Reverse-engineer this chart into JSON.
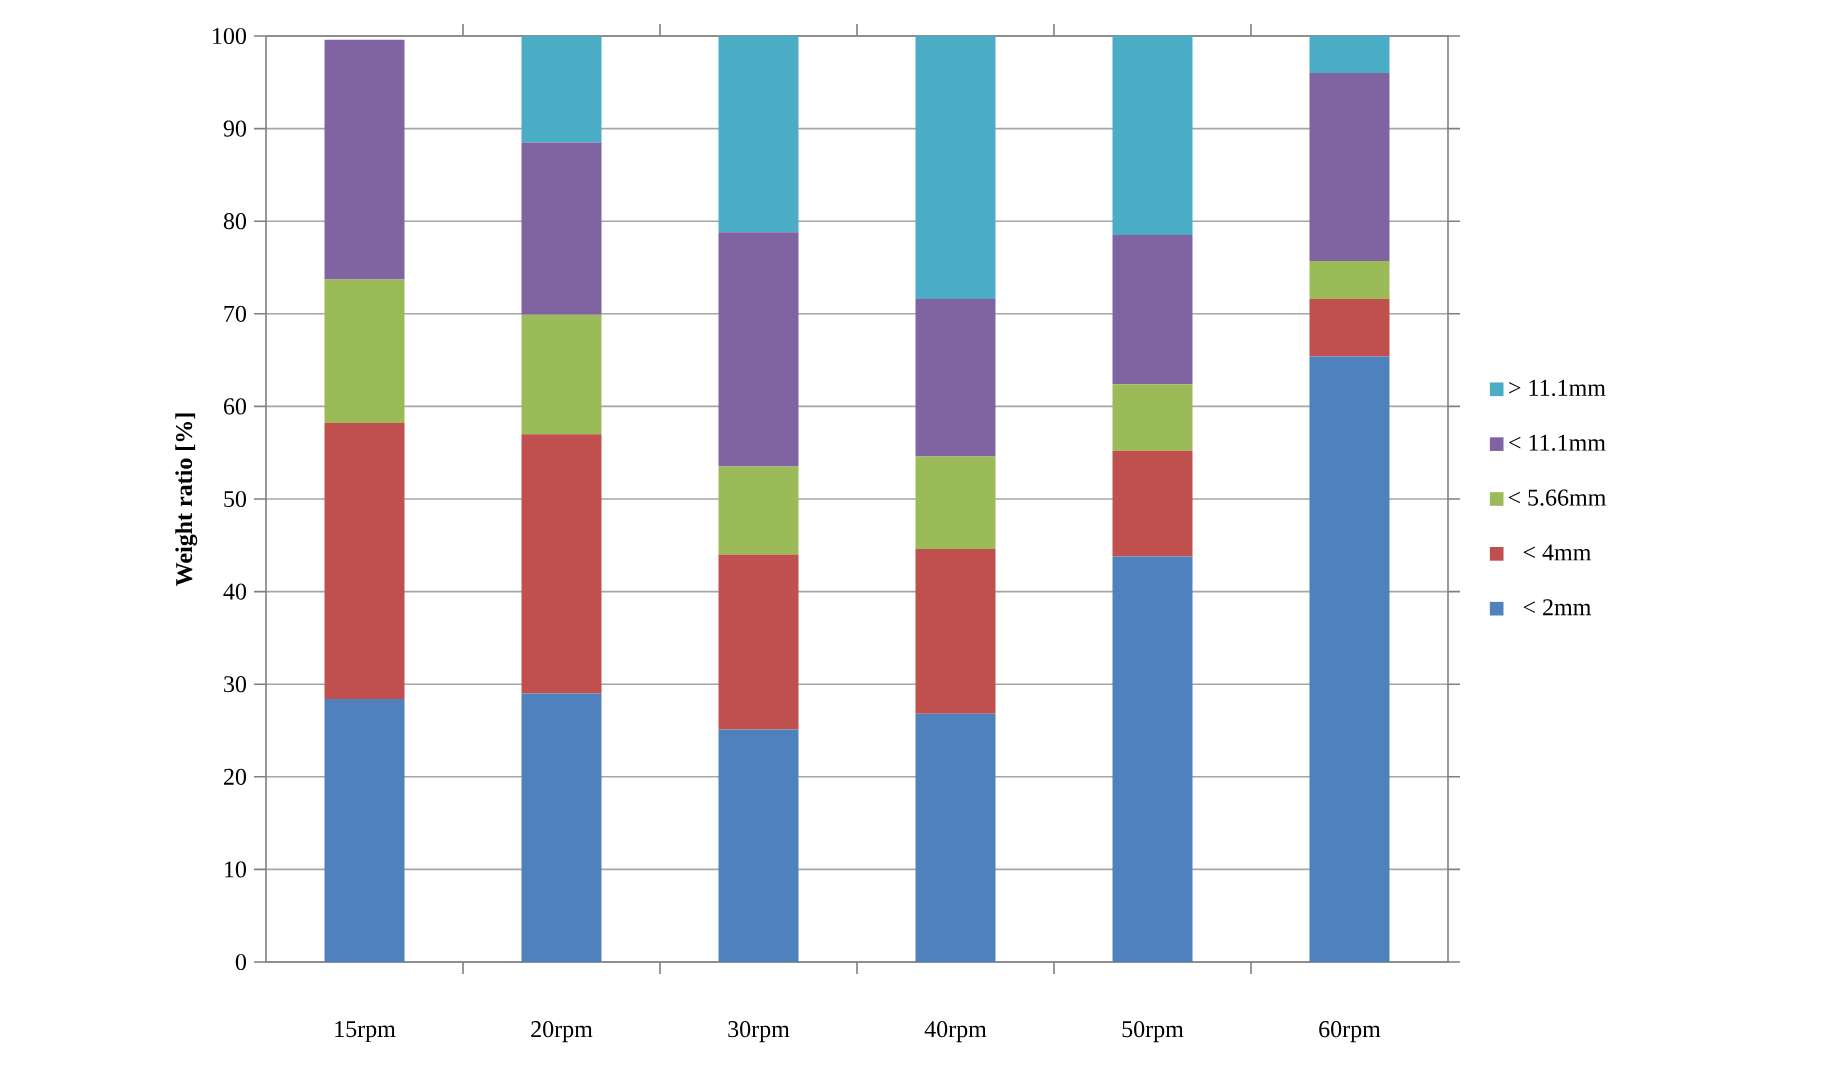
{
  "chart_data": {
    "type": "bar",
    "stacked": true,
    "ylabel": "Weight ratio [%]",
    "categories": [
      "15rpm",
      "20rpm",
      "30rpm",
      "40rpm",
      "50rpm",
      "60rpm"
    ],
    "series": [
      {
        "name": "< 2mm",
        "color": "#4f81bd",
        "values": [
          28.4,
          29.0,
          25.1,
          26.8,
          43.8,
          65.4
        ]
      },
      {
        "name": "< 4mm",
        "color": "#c0504d",
        "values": [
          29.8,
          28.0,
          18.9,
          17.8,
          11.4,
          6.2
        ]
      },
      {
        "name": "< 5.66mm",
        "color": "#9bbb59",
        "values": [
          15.5,
          12.9,
          9.5,
          10.0,
          7.2,
          4.1
        ]
      },
      {
        "name": "< 11.1mm",
        "color": "#8064a2",
        "values": [
          25.9,
          18.6,
          25.3,
          17.0,
          16.1,
          20.3
        ]
      },
      {
        "name": "> 11.1mm",
        "color": "#4bacc6",
        "values": [
          0,
          11.5,
          21.2,
          28.4,
          21.5,
          4.0
        ]
      }
    ],
    "ylim": [
      0,
      100
    ],
    "yticks": [
      0,
      10,
      20,
      30,
      40,
      50,
      60,
      70,
      80,
      90,
      100
    ],
    "grid": "y",
    "legend": "right"
  }
}
